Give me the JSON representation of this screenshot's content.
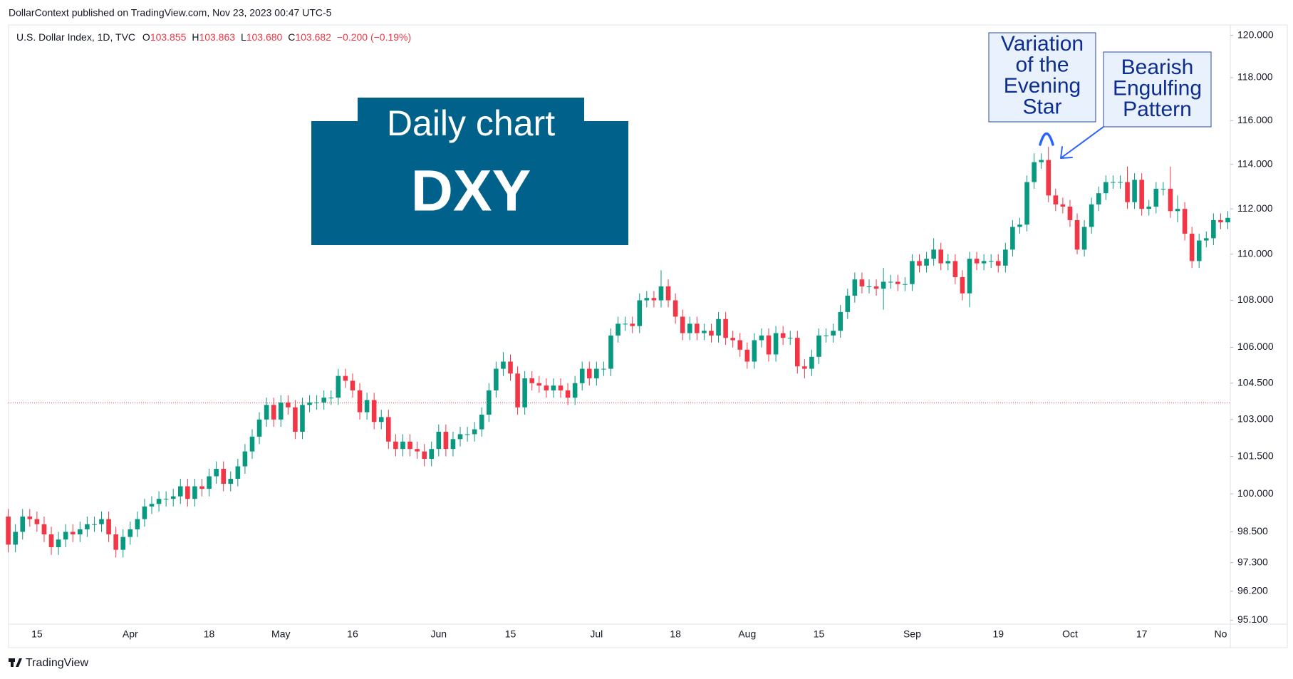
{
  "attribution": "DollarContext published on TradingView.com, Nov 23, 2023 00:47 UTC-5",
  "legend": {
    "symbol": "U.S. Dollar Index, 1D, TVC",
    "fields": [
      {
        "key": "O",
        "value": "103.855"
      },
      {
        "key": "H",
        "value": "103.863"
      },
      {
        "key": "L",
        "value": "103.680"
      },
      {
        "key": "C",
        "value": "103.682"
      }
    ],
    "change": "−0.200 (−0.19%)"
  },
  "brand": "TradingView",
  "chart_data": {
    "type": "candlestick",
    "categories": [
      null,
      null,
      null,
      null,
      "15",
      null,
      null,
      null,
      null,
      null,
      null,
      null,
      null,
      null,
      null,
      null,
      null,
      "Apr",
      null,
      null,
      null,
      null,
      null,
      null,
      null,
      null,
      null,
      null,
      "18",
      null,
      null,
      null,
      null,
      null,
      null,
      null,
      null,
      null,
      "May",
      null,
      null,
      null,
      null,
      null,
      null,
      null,
      null,
      null,
      "16",
      null,
      null,
      null,
      null,
      null,
      null,
      null,
      null,
      null,
      null,
      null,
      "Jun",
      null,
      null,
      null,
      null,
      null,
      null,
      null,
      null,
      null,
      "15",
      null,
      null,
      null,
      null,
      null,
      null,
      null,
      null,
      null,
      null,
      null,
      "Jul",
      null,
      null,
      null,
      null,
      null,
      null,
      null,
      null,
      null,
      null,
      "18",
      null,
      null,
      null,
      null,
      null,
      null,
      null,
      null,
      null,
      "Aug",
      null,
      null,
      null,
      null,
      null,
      null,
      null,
      null,
      null,
      "15",
      null,
      null,
      null,
      null,
      null,
      null,
      null,
      null,
      null,
      null,
      null,
      null,
      "Sep",
      null,
      null,
      null,
      null,
      null,
      null,
      null,
      null,
      null,
      null,
      null,
      "19",
      null,
      null,
      null,
      null,
      null,
      null,
      null,
      null,
      null,
      "Oct",
      null,
      null,
      null,
      null,
      null,
      null,
      null,
      null,
      null,
      "17",
      null,
      null,
      null,
      null,
      null,
      null,
      null,
      null,
      null,
      null,
      "No",
      null
    ],
    "open": [
      99.1,
      98.0,
      98.5,
      99.1,
      99.0,
      98.8,
      98.4,
      97.9,
      98.2,
      98.5,
      98.4,
      98.6,
      98.8,
      98.8,
      99.0,
      98.4,
      97.8,
      98.3,
      98.6,
      99.0,
      99.5,
      99.6,
      99.8,
      99.8,
      99.9,
      100.3,
      99.8,
      100.3,
      100.2,
      100.7,
      101.0,
      100.4,
      100.6,
      101.1,
      101.7,
      102.3,
      103.0,
      103.6,
      103.0,
      103.7,
      103.5,
      102.5,
      103.6,
      103.7,
      103.7,
      103.9,
      103.9,
      104.8,
      104.6,
      104.2,
      103.3,
      103.8,
      102.9,
      103.1,
      102.1,
      101.8,
      102.1,
      101.8,
      101.7,
      101.4,
      101.8,
      102.5,
      101.8,
      102.2,
      102.4,
      102.4,
      102.6,
      103.2,
      104.2,
      105.1,
      105.4,
      104.9,
      103.5,
      104.7,
      104.5,
      104.4,
      104.2,
      104.4,
      104.2,
      103.9,
      104.5,
      105.1,
      104.7,
      105.1,
      105.1,
      106.5,
      107.0,
      107.0,
      106.9,
      108.0,
      108.1,
      108.0,
      108.6,
      108.0,
      107.3,
      106.6,
      107.0,
      106.6,
      106.7,
      106.5,
      107.2,
      106.4,
      106.3,
      105.9,
      105.4,
      106.3,
      106.5,
      105.7,
      106.6,
      106.4,
      106.4,
      105.2,
      105.1,
      105.6,
      106.5,
      106.5,
      106.7,
      107.5,
      108.2,
      108.9,
      108.6,
      108.6,
      108.5,
      108.8,
      108.8,
      108.7,
      108.7,
      109.7,
      109.5,
      109.8,
      110.2,
      109.6,
      109.7,
      109.0,
      108.3,
      109.8,
      109.6,
      109.7,
      109.7,
      109.5,
      110.2,
      111.2,
      111.3,
      113.2,
      114.1,
      114.2,
      112.6,
      112.2,
      112.1,
      111.5,
      110.2,
      111.2,
      112.2,
      112.7,
      113.2,
      113.2,
      113.2,
      112.3,
      113.3,
      112.0,
      112.1,
      112.9,
      112.9,
      111.9,
      112.0,
      110.9,
      109.7,
      110.6,
      110.7,
      111.5,
      111.4
    ],
    "high": [
      99.4,
      98.8,
      99.4,
      99.4,
      99.3,
      99.1,
      98.7,
      98.5,
      98.8,
      98.8,
      98.9,
      99.1,
      99.1,
      99.3,
      99.3,
      98.7,
      98.6,
      98.9,
      99.3,
      99.8,
      99.9,
      100.1,
      100.1,
      100.2,
      100.6,
      100.6,
      100.6,
      100.6,
      101.0,
      101.3,
      101.3,
      100.9,
      101.4,
      102.0,
      102.6,
      103.3,
      103.9,
      103.9,
      104.0,
      104.0,
      103.8,
      103.9,
      104.0,
      104.0,
      104.2,
      104.2,
      105.1,
      105.1,
      104.9,
      104.5,
      104.1,
      104.1,
      103.4,
      103.4,
      102.4,
      102.4,
      102.4,
      102.1,
      102.0,
      102.1,
      102.8,
      102.8,
      102.5,
      102.7,
      102.7,
      102.9,
      103.5,
      104.5,
      105.4,
      105.8,
      105.7,
      105.2,
      105.0,
      105.0,
      104.8,
      104.7,
      104.7,
      104.7,
      104.5,
      104.8,
      105.4,
      105.4,
      105.4,
      105.4,
      106.8,
      107.3,
      107.3,
      107.3,
      108.3,
      108.4,
      108.4,
      109.3,
      108.9,
      108.3,
      107.6,
      107.3,
      107.3,
      107.0,
      107.0,
      107.5,
      107.5,
      106.7,
      106.6,
      106.2,
      106.6,
      106.8,
      106.8,
      106.9,
      106.9,
      106.7,
      106.7,
      105.5,
      105.9,
      106.8,
      106.8,
      107.0,
      107.8,
      108.5,
      109.2,
      109.2,
      108.9,
      108.9,
      109.4,
      109.1,
      109.1,
      109.0,
      110.0,
      110.0,
      110.1,
      110.7,
      110.5,
      110.0,
      110.0,
      109.3,
      110.1,
      110.1,
      110.0,
      110.0,
      110.0,
      110.5,
      111.5,
      111.6,
      113.5,
      114.5,
      114.5,
      114.8,
      112.9,
      112.5,
      112.4,
      111.8,
      111.5,
      112.5,
      113.0,
      113.5,
      113.5,
      113.5,
      113.9,
      113.6,
      113.6,
      112.4,
      113.2,
      113.2,
      113.9,
      112.6,
      112.3,
      111.2,
      110.9,
      111.0,
      111.8,
      111.8,
      111.9
    ],
    "low": [
      97.7,
      97.7,
      98.2,
      98.7,
      98.5,
      98.1,
      97.6,
      97.6,
      97.9,
      98.1,
      98.1,
      98.3,
      98.5,
      98.5,
      98.1,
      97.5,
      97.5,
      98.0,
      98.3,
      98.7,
      99.2,
      99.3,
      99.5,
      99.5,
      99.6,
      99.5,
      99.5,
      99.9,
      99.9,
      100.4,
      100.1,
      100.1,
      100.3,
      100.8,
      101.4,
      102.0,
      102.7,
      102.7,
      102.7,
      103.2,
      102.2,
      102.2,
      103.3,
      103.4,
      103.4,
      103.6,
      103.6,
      104.3,
      103.9,
      103.0,
      103.0,
      102.6,
      102.6,
      101.8,
      101.5,
      101.5,
      101.5,
      101.4,
      101.1,
      101.1,
      101.5,
      101.5,
      101.5,
      101.9,
      102.1,
      102.1,
      102.3,
      102.9,
      103.9,
      104.8,
      104.6,
      103.2,
      103.2,
      104.2,
      104.1,
      103.9,
      103.9,
      103.9,
      103.6,
      103.6,
      104.2,
      104.4,
      104.4,
      104.8,
      104.8,
      106.2,
      106.7,
      106.6,
      106.6,
      107.7,
      107.7,
      107.7,
      107.7,
      107.0,
      106.3,
      106.3,
      106.3,
      106.3,
      106.2,
      106.2,
      106.1,
      106.0,
      105.6,
      105.1,
      105.1,
      106.0,
      105.4,
      105.4,
      106.1,
      106.1,
      104.9,
      104.7,
      104.8,
      105.3,
      106.2,
      106.2,
      106.4,
      107.2,
      107.9,
      108.3,
      108.3,
      108.2,
      107.6,
      108.5,
      108.4,
      108.4,
      108.4,
      109.2,
      109.2,
      109.5,
      109.3,
      109.3,
      108.7,
      108.0,
      107.7,
      109.3,
      109.3,
      109.4,
      109.2,
      109.2,
      109.9,
      110.9,
      111.0,
      112.9,
      113.8,
      112.3,
      111.9,
      111.8,
      111.2,
      110.0,
      109.9,
      110.9,
      111.9,
      112.4,
      112.9,
      112.9,
      112.0,
      112.0,
      111.7,
      111.7,
      111.8,
      112.6,
      111.6,
      111.4,
      110.6,
      109.4,
      109.4,
      110.3,
      110.4,
      111.1,
      111.1
    ],
    "close": [
      98.0,
      98.5,
      99.1,
      99.0,
      98.8,
      98.4,
      97.9,
      98.2,
      98.5,
      98.4,
      98.6,
      98.8,
      98.8,
      99.0,
      98.4,
      97.8,
      98.3,
      98.6,
      99.0,
      99.5,
      99.6,
      99.8,
      99.8,
      99.9,
      100.3,
      99.8,
      100.3,
      100.2,
      100.7,
      101.0,
      100.4,
      100.6,
      101.1,
      101.7,
      102.3,
      103.0,
      103.6,
      103.0,
      103.7,
      103.5,
      102.5,
      103.6,
      103.7,
      103.7,
      103.9,
      103.9,
      104.8,
      104.6,
      104.2,
      103.3,
      103.8,
      102.9,
      103.1,
      102.1,
      101.8,
      102.1,
      101.8,
      101.7,
      101.4,
      101.8,
      102.5,
      101.8,
      102.2,
      102.4,
      102.4,
      102.6,
      103.2,
      104.2,
      105.1,
      105.4,
      104.9,
      103.5,
      104.7,
      104.5,
      104.4,
      104.2,
      104.4,
      104.2,
      103.9,
      104.5,
      105.1,
      104.7,
      105.1,
      105.1,
      106.5,
      107.0,
      107.0,
      106.9,
      108.0,
      108.1,
      108.0,
      108.6,
      108.0,
      107.3,
      106.6,
      107.0,
      106.6,
      106.7,
      106.5,
      107.2,
      106.4,
      106.3,
      105.9,
      105.4,
      106.3,
      106.5,
      105.7,
      106.6,
      106.4,
      106.4,
      105.2,
      105.1,
      105.6,
      106.5,
      106.5,
      106.7,
      107.5,
      108.2,
      108.9,
      108.6,
      108.6,
      108.5,
      108.8,
      108.8,
      108.7,
      108.7,
      109.7,
      109.5,
      109.8,
      110.2,
      109.6,
      109.7,
      109.0,
      108.3,
      109.8,
      109.6,
      109.7,
      109.7,
      109.5,
      110.2,
      111.2,
      111.3,
      113.2,
      114.1,
      114.2,
      112.6,
      112.2,
      112.1,
      111.5,
      110.2,
      111.2,
      112.2,
      112.7,
      113.2,
      113.2,
      113.2,
      112.3,
      113.3,
      112.0,
      112.1,
      112.9,
      112.9,
      111.9,
      112.0,
      110.9,
      109.7,
      110.6,
      110.7,
      111.5,
      111.4,
      111.6
    ],
    "up_color": "#089981",
    "down_color": "#f23645",
    "log_scale": true,
    "grid": false,
    "ylim": [
      94.95,
      120.5
    ],
    "yticks": [
      {
        "value": 120,
        "label": "120.000"
      },
      {
        "value": 118,
        "label": "118.000"
      },
      {
        "value": 116,
        "label": "116.000"
      },
      {
        "value": 114,
        "label": "114.000"
      },
      {
        "value": 112,
        "label": "112.000"
      },
      {
        "value": 110,
        "label": "110.000"
      },
      {
        "value": 108,
        "label": "108.000"
      },
      {
        "value": 106,
        "label": "106.000"
      },
      {
        "value": 104.5,
        "label": "104.500"
      },
      {
        "value": 103,
        "label": "103.000"
      },
      {
        "value": 101.5,
        "label": "101.500"
      },
      {
        "value": 100,
        "label": "100.000"
      },
      {
        "value": 98.5,
        "label": "98.500"
      },
      {
        "value": 97.3,
        "label": "97.300"
      },
      {
        "value": 96.2,
        "label": "96.200"
      },
      {
        "value": 95.1,
        "label": "95.100"
      }
    ],
    "last_price": 103.682,
    "last_price_color": "#f23645",
    "badge": {
      "line1": "Daily chart",
      "line2": "DXY",
      "color": "#00618a"
    },
    "callouts": [
      {
        "lines": [
          "Variation",
          "of the",
          "Evening",
          "Star"
        ]
      },
      {
        "lines": [
          "Bearish",
          "Engulfing",
          "Pattern"
        ]
      }
    ]
  }
}
